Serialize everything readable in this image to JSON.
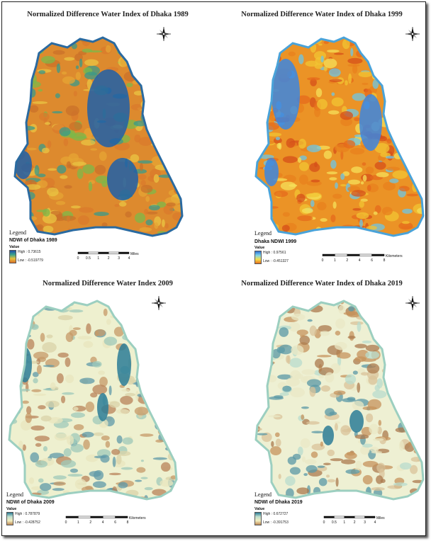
{
  "panels": [
    {
      "title": "Normalized Difference Water Index of Dhaka 1989",
      "legend_label": "Legend",
      "legend_title": "NDWI of Dhaka 1989",
      "value_label": "Value",
      "high": "High : 0.73615",
      "low": "Low : -0.519779",
      "scale_ticks": [
        "0",
        "0.5",
        "1",
        "2",
        "3",
        "4"
      ],
      "scale_unit": "Miles",
      "ramp_colors": [
        "#1f4fa8",
        "#3aa48c",
        "#e8c23c",
        "#d9702a"
      ]
    },
    {
      "title": "Normalized Difference Water Index of Dhaka 1999",
      "legend_label": "Legend",
      "legend_title": "Dhaka NDWI 1999",
      "value_label": "Value",
      "high": "High : 0.97561",
      "low": "Low : -0.451327",
      "scale_ticks": [
        "0",
        "1",
        "2",
        "4",
        "6",
        "8"
      ],
      "scale_unit": "Kilometers",
      "ramp_colors": [
        "#2b6fd6",
        "#7fd4e8",
        "#f4e04a",
        "#e8701e"
      ]
    },
    {
      "title": "Normalized Difference Water Index 2009",
      "legend_label": "Legend",
      "legend_title": "NDWI of Dhaka 2009",
      "value_label": "Value",
      "high": "High : 0.787879",
      "low": "Low : -0.428752",
      "scale_ticks": [
        "0",
        "1",
        "2",
        "4",
        "6",
        "8"
      ],
      "scale_unit": "Kilometers",
      "ramp_colors": [
        "#2a7a94",
        "#bfe0cf",
        "#f2eec0",
        "#c08a55"
      ]
    },
    {
      "title": "Normalized Difference Water Index of Dhaka 2019",
      "legend_label": "Legend",
      "legend_title": "NDWI of Dhaka 2019",
      "value_label": "Value",
      "high": "High : 0.672727",
      "low": "Low : -0.391753",
      "scale_ticks": [
        "0",
        "0.5",
        "1",
        "2",
        "3",
        "4"
      ],
      "scale_unit": "Miles",
      "ramp_colors": [
        "#2a7a94",
        "#bfe0cf",
        "#f2eec0",
        "#c08a55"
      ]
    }
  ],
  "icons": {
    "north_arrow": "compass-rose-icon"
  }
}
